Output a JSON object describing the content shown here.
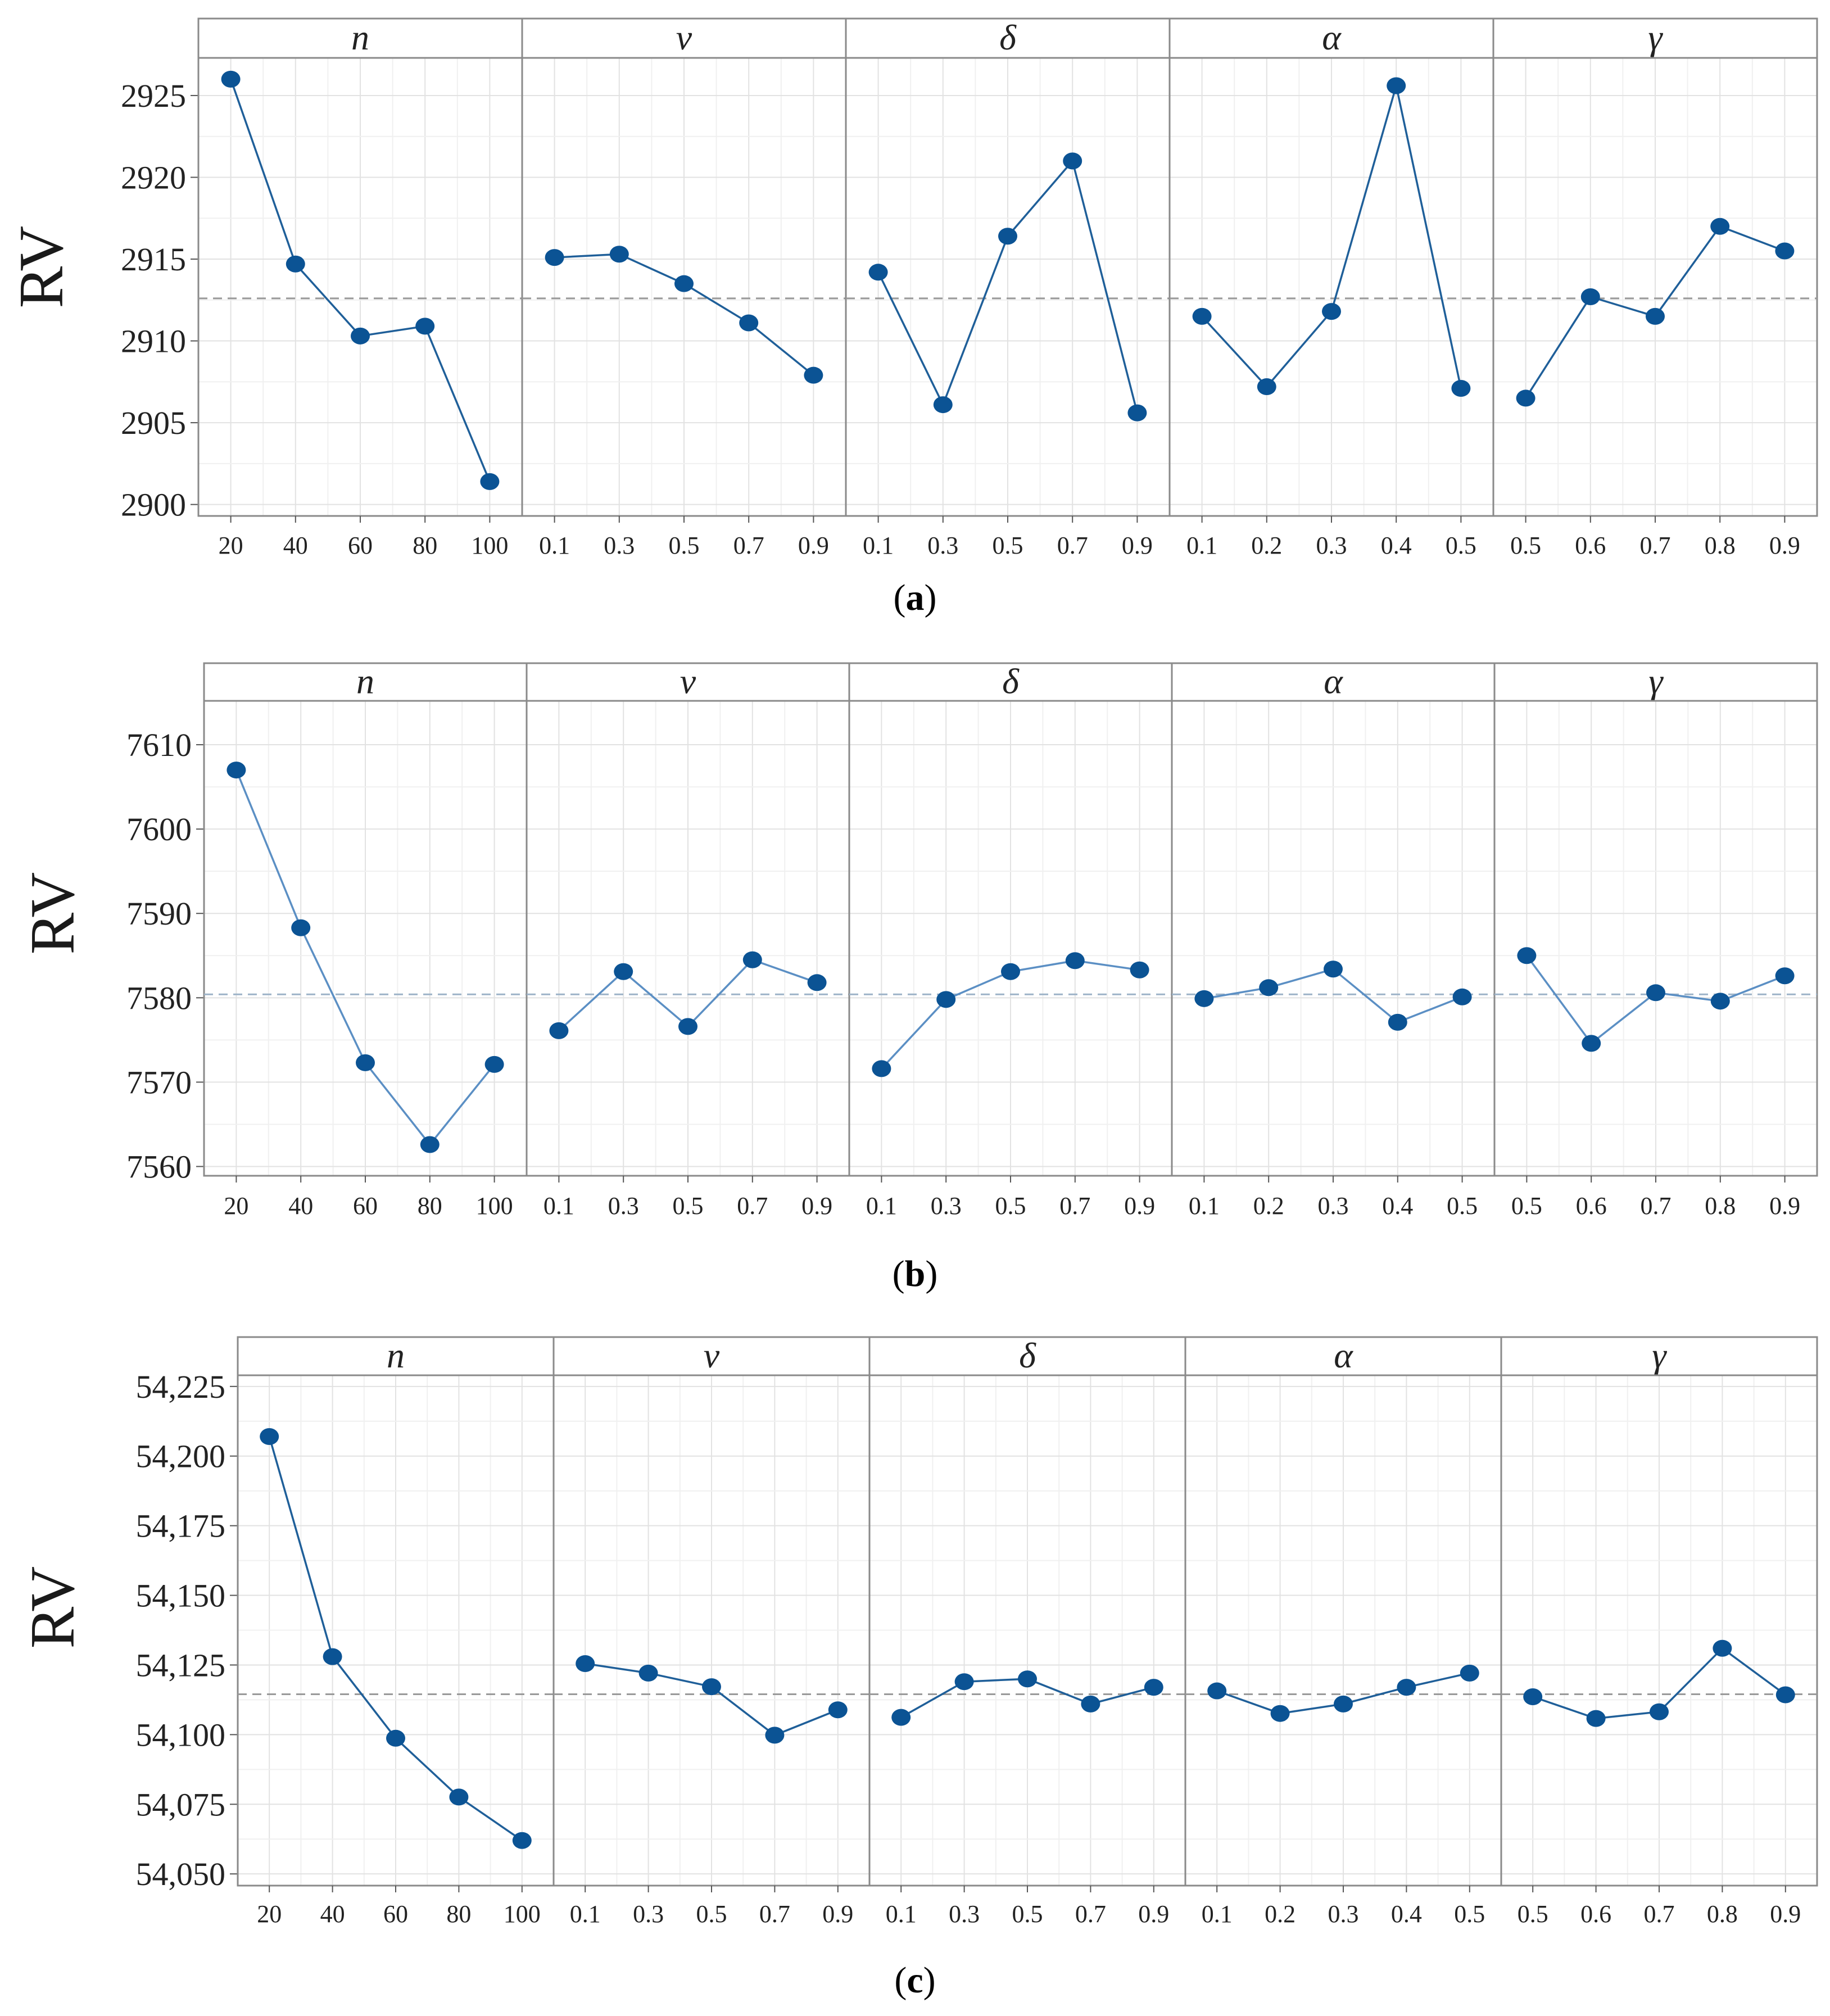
{
  "chart_data": [
    {
      "type": "line",
      "panel": "a",
      "caption_letter": "a",
      "ylabel": "RV",
      "yticks": [
        2900,
        2905,
        2910,
        2915,
        2920,
        2925
      ],
      "ytick_labels": [
        "2900",
        "2905",
        "2910",
        "2915",
        "2920",
        "2925"
      ],
      "ylim": [
        2899.3,
        2927.3
      ],
      "reference_line": 2912.6,
      "colors": {
        "marker": "#0b5394",
        "line": "#1f5f99",
        "reference": "#999999"
      },
      "facets": [
        {
          "label": "n",
          "x": [
            "20",
            "40",
            "60",
            "80",
            "100"
          ],
          "values": [
            2926.0,
            2914.7,
            2910.3,
            2910.9,
            2901.4
          ]
        },
        {
          "label": "v",
          "x": [
            "0.1",
            "0.3",
            "0.5",
            "0.7",
            "0.9"
          ],
          "values": [
            2915.1,
            2915.3,
            2913.5,
            2911.1,
            2907.9
          ]
        },
        {
          "label": "δ",
          "x": [
            "0.1",
            "0.3",
            "0.5",
            "0.7",
            "0.9"
          ],
          "values": [
            2914.2,
            2906.1,
            2916.4,
            2921.0,
            2905.6
          ]
        },
        {
          "label": "α",
          "x": [
            "0.1",
            "0.2",
            "0.3",
            "0.4",
            "0.5"
          ],
          "values": [
            2911.5,
            2907.2,
            2911.8,
            2925.6,
            2907.1
          ]
        },
        {
          "label": "γ",
          "x": [
            "0.5",
            "0.6",
            "0.7",
            "0.8",
            "0.9"
          ],
          "values": [
            2906.5,
            2912.7,
            2911.5,
            2917.0,
            2915.5
          ]
        }
      ]
    },
    {
      "type": "line",
      "panel": "b",
      "caption_letter": "b",
      "ylabel": "RV",
      "yticks": [
        7560,
        7570,
        7580,
        7590,
        7600,
        7610
      ],
      "ytick_labels": [
        "7560",
        "7570",
        "7580",
        "7590",
        "7600",
        "7610"
      ],
      "ylim": [
        7558.9,
        7615.2
      ],
      "reference_line": 7580.4,
      "colors": {
        "marker": "#0b5394",
        "line": "#5b8fc4",
        "reference": "#9db3c8"
      },
      "facets": [
        {
          "label": "n",
          "x": [
            "20",
            "40",
            "60",
            "80",
            "100"
          ],
          "values": [
            7607.0,
            7588.3,
            7572.3,
            7562.6,
            7572.1
          ]
        },
        {
          "label": "v",
          "x": [
            "0.1",
            "0.3",
            "0.5",
            "0.7",
            "0.9"
          ],
          "values": [
            7576.1,
            7583.1,
            7576.6,
            7584.5,
            7581.8
          ]
        },
        {
          "label": "δ",
          "x": [
            "0.1",
            "0.3",
            "0.5",
            "0.7",
            "0.9"
          ],
          "values": [
            7571.6,
            7579.8,
            7583.1,
            7584.4,
            7583.3
          ]
        },
        {
          "label": "α",
          "x": [
            "0.1",
            "0.2",
            "0.3",
            "0.4",
            "0.5"
          ],
          "values": [
            7579.9,
            7581.2,
            7583.4,
            7577.1,
            7580.1
          ]
        },
        {
          "label": "γ",
          "x": [
            "0.5",
            "0.6",
            "0.7",
            "0.8",
            "0.9"
          ],
          "values": [
            7585.0,
            7574.6,
            7580.6,
            7579.6,
            7582.6
          ]
        }
      ]
    },
    {
      "type": "line",
      "panel": "c",
      "caption_letter": "c",
      "ylabel": "RV",
      "yticks": [
        54050,
        54075,
        54100,
        54125,
        54150,
        54175,
        54200,
        54225
      ],
      "ytick_labels": [
        "54,050",
        "54,075",
        "54,100",
        "54,125",
        "54,150",
        "54,175",
        "54,200",
        "54,225"
      ],
      "ylim": [
        54045.8,
        54229.0
      ],
      "reference_line": 54114.5,
      "colors": {
        "marker": "#0b5394",
        "line": "#1f5f99",
        "reference": "#999999"
      },
      "facets": [
        {
          "label": "n",
          "x": [
            "20",
            "40",
            "60",
            "80",
            "100"
          ],
          "values": [
            54207.0,
            54128.0,
            54098.7,
            54077.6,
            54062.0
          ]
        },
        {
          "label": "v",
          "x": [
            "0.1",
            "0.3",
            "0.5",
            "0.7",
            "0.9"
          ],
          "values": [
            54125.5,
            54122.1,
            54117.2,
            54099.8,
            54108.9
          ]
        },
        {
          "label": "δ",
          "x": [
            "0.1",
            "0.3",
            "0.5",
            "0.7",
            "0.9"
          ],
          "values": [
            54106.2,
            54119.0,
            54120.0,
            54111.0,
            54117.0
          ]
        },
        {
          "label": "α",
          "x": [
            "0.1",
            "0.2",
            "0.3",
            "0.4",
            "0.5"
          ],
          "values": [
            54115.7,
            54107.6,
            54111.0,
            54117.0,
            54122.1
          ]
        },
        {
          "label": "γ",
          "x": [
            "0.5",
            "0.6",
            "0.7",
            "0.8",
            "0.9"
          ],
          "values": [
            54113.6,
            54105.8,
            54108.2,
            54131.0,
            54114.3
          ]
        }
      ]
    }
  ]
}
